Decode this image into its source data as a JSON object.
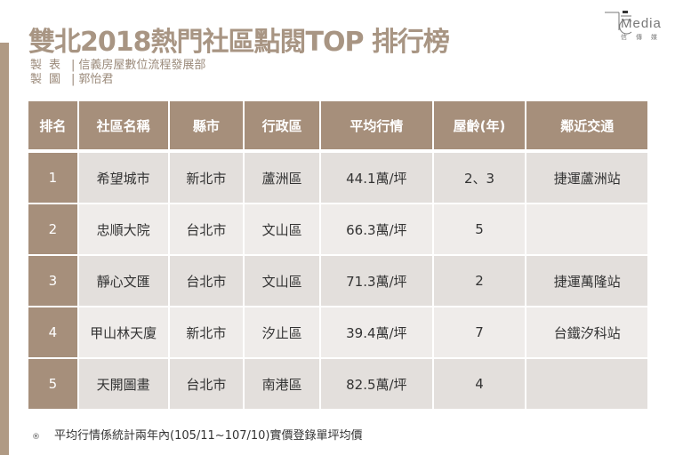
{
  "title": "雙北2018熱門社區點閱TOP 排行榜",
  "meta": [
    {
      "label": "製表",
      "value": "信義房屋數位流程發展部"
    },
    {
      "label": "製圖",
      "value": "郭怡君"
    }
  ],
  "logo": {
    "word": "Media",
    "sub": "信傳媒"
  },
  "table": {
    "headers": [
      "排名",
      "社區名稱",
      "縣市",
      "行政區",
      "平均行情",
      "屋齡(年)",
      "鄰近交通"
    ],
    "rows": [
      [
        "1",
        "希望城市",
        "新北市",
        "蘆洲區",
        "44.1萬/坪",
        "2、3",
        "捷運蘆洲站"
      ],
      [
        "2",
        "忠順大院",
        "台北市",
        "文山區",
        "66.3萬/坪",
        "5",
        ""
      ],
      [
        "3",
        "靜心文匯",
        "台北市",
        "文山區",
        "71.3萬/坪",
        "2",
        "捷運萬隆站"
      ],
      [
        "4",
        "甲山林天廈",
        "新北市",
        "汐止區",
        "39.4萬/坪",
        "7",
        "台鐵汐科站"
      ],
      [
        "5",
        "天開圖畫",
        "台北市",
        "南港區",
        "82.5萬/坪",
        "4",
        ""
      ]
    ]
  },
  "note": {
    "bullet": "®",
    "text": "平均行情係統計兩年內(105/11~107/10)實價登錄單坪均價"
  },
  "colors": {
    "header": "#a68f7b",
    "title": "#a89583",
    "row_odd": "#e3dfdc",
    "row_even": "#efecea"
  }
}
